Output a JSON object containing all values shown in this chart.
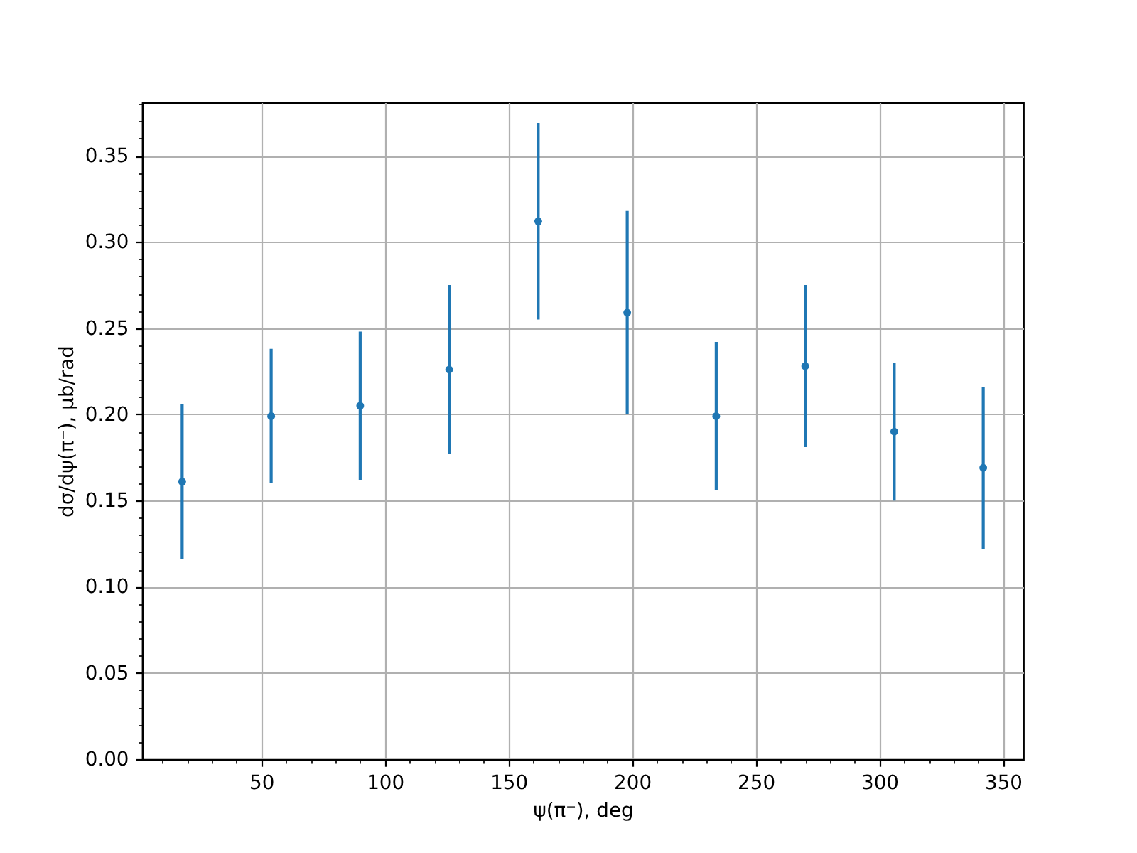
{
  "chart_data": {
    "type": "scatter",
    "xlabel": "ψ(π⁻), deg",
    "ylabel": "dσ/dψ(π⁻), μb/rad",
    "x": [
      18,
      54,
      90,
      126,
      162,
      198,
      234,
      270,
      306,
      342
    ],
    "values": [
      0.161,
      0.199,
      0.205,
      0.226,
      0.312,
      0.259,
      0.199,
      0.228,
      0.19,
      0.169
    ],
    "errors": [
      0.045,
      0.039,
      0.043,
      0.049,
      0.057,
      0.059,
      0.043,
      0.047,
      0.04,
      0.047
    ],
    "color": "#1f77b4",
    "marker": "circle",
    "grid": true,
    "xlim": [
      1.8,
      358.2
    ],
    "ylim": [
      0,
      0.381
    ],
    "xticks": [
      {
        "value": 10,
        "label": null
      },
      {
        "value": 20,
        "label": null
      },
      {
        "value": 30,
        "label": null
      },
      {
        "value": 40,
        "label": null
      },
      50,
      {
        "value": 60,
        "label": null
      },
      {
        "value": 70,
        "label": null
      },
      {
        "value": 80,
        "label": null
      },
      {
        "value": 90,
        "label": null
      },
      100,
      {
        "value": 110,
        "label": null
      },
      {
        "value": 120,
        "label": null
      },
      {
        "value": 130,
        "label": null
      },
      {
        "value": 140,
        "label": null
      },
      150,
      {
        "value": 160,
        "label": null
      },
      {
        "value": 170,
        "label": null
      },
      {
        "value": 180,
        "label": null
      },
      {
        "value": 190,
        "label": null
      },
      200,
      {
        "value": 210,
        "label": null
      },
      {
        "value": 220,
        "label": null
      },
      {
        "value": 230,
        "label": null
      },
      {
        "value": 240,
        "label": null
      },
      250,
      {
        "value": 260,
        "label": null
      },
      {
        "value": 270,
        "label": null
      },
      {
        "value": 280,
        "label": null
      },
      {
        "value": 290,
        "label": null
      },
      300,
      {
        "value": 310,
        "label": null
      },
      {
        "value": 320,
        "label": null
      },
      {
        "value": 330,
        "label": null
      },
      {
        "value": 340,
        "label": null
      },
      350
    ],
    "yticks": [
      {
        "value": 0,
        "label": "0.00"
      },
      {
        "value": 0.01,
        "label": null
      },
      {
        "value": 0.02,
        "label": null
      },
      {
        "value": 0.03,
        "label": null
      },
      {
        "value": 0.04,
        "label": null
      },
      {
        "value": 0.05,
        "label": "0.05"
      },
      {
        "value": 0.06,
        "label": null
      },
      {
        "value": 0.07,
        "label": null
      },
      {
        "value": 0.08,
        "label": null
      },
      {
        "value": 0.09,
        "label": null
      },
      {
        "value": 0.1,
        "label": "0.10"
      },
      {
        "value": 0.11,
        "label": null
      },
      {
        "value": 0.12,
        "label": null
      },
      {
        "value": 0.13,
        "label": null
      },
      {
        "value": 0.14,
        "label": null
      },
      {
        "value": 0.15,
        "label": "0.15"
      },
      {
        "value": 0.16,
        "label": null
      },
      {
        "value": 0.17,
        "label": null
      },
      {
        "value": 0.18,
        "label": null
      },
      {
        "value": 0.19,
        "label": null
      },
      {
        "value": 0.2,
        "label": "0.20"
      },
      {
        "value": 0.21,
        "label": null
      },
      {
        "value": 0.22,
        "label": null
      },
      {
        "value": 0.23,
        "label": null
      },
      {
        "value": 0.24,
        "label": null
      },
      {
        "value": 0.25,
        "label": "0.25"
      },
      {
        "value": 0.26,
        "label": null
      },
      {
        "value": 0.27,
        "label": null
      },
      {
        "value": 0.28,
        "label": null
      },
      {
        "value": 0.29,
        "label": null
      },
      {
        "value": 0.3,
        "label": "0.30"
      },
      {
        "value": 0.31,
        "label": null
      },
      {
        "value": 0.32,
        "label": null
      },
      {
        "value": 0.33,
        "label": null
      },
      {
        "value": 0.34,
        "label": null
      },
      {
        "value": 0.35,
        "label": "0.35"
      },
      {
        "value": 0.36,
        "label": null
      },
      {
        "value": 0.37,
        "label": null
      },
      {
        "value": 0.38,
        "label": null
      }
    ]
  }
}
